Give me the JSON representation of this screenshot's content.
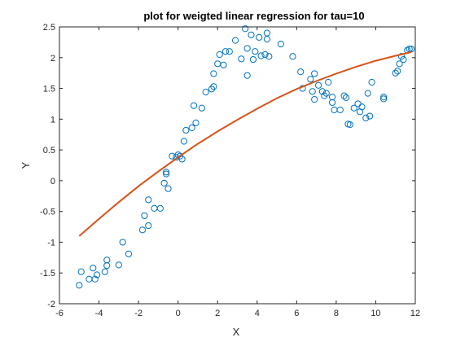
{
  "chart_data": {
    "type": "scatter",
    "title": "plot for weigted linear regression for tau=10",
    "xlabel": "X",
    "ylabel": "Y",
    "xlim": [
      -6,
      12
    ],
    "ylim": [
      -2,
      2.5
    ],
    "xticks": [
      -6,
      -4,
      -2,
      0,
      2,
      4,
      6,
      8,
      10,
      12
    ],
    "yticks": [
      -2,
      -1.5,
      -1,
      -0.5,
      0,
      0.5,
      1,
      1.5,
      2,
      2.5
    ],
    "xtick_labels": [
      "-6",
      "-4",
      "-2",
      "0",
      "2",
      "4",
      "6",
      "8",
      "10",
      "12"
    ],
    "ytick_labels": [
      "-2",
      "-1.5",
      "-1",
      "-0.5",
      "0",
      "0.5",
      "1",
      "1.5",
      "2",
      "2.5"
    ],
    "grid": false,
    "legend": false,
    "colors": {
      "points": "#0072BD",
      "line": "#D95319"
    },
    "series": [
      {
        "kind": "scatter",
        "points": [
          [
            -5.0,
            -1.7
          ],
          [
            -4.9,
            -1.48
          ],
          [
            -4.5,
            -1.6
          ],
          [
            -4.3,
            -1.42
          ],
          [
            -4.2,
            -1.6
          ],
          [
            -4.1,
            -1.53
          ],
          [
            -3.7,
            -1.48
          ],
          [
            -3.6,
            -1.38
          ],
          [
            -3.6,
            -1.29
          ],
          [
            -3.0,
            -1.37
          ],
          [
            -2.8,
            -1.0
          ],
          [
            -2.5,
            -1.19
          ],
          [
            -1.8,
            -0.8
          ],
          [
            -1.7,
            -0.57
          ],
          [
            -1.5,
            -0.73
          ],
          [
            -1.5,
            -0.31
          ],
          [
            -1.2,
            -0.45
          ],
          [
            -0.9,
            -0.45
          ],
          [
            -0.7,
            -0.04
          ],
          [
            -0.6,
            0.14
          ],
          [
            -0.6,
            0.11
          ],
          [
            -0.5,
            -0.13
          ],
          [
            -0.3,
            0.4
          ],
          [
            -0.1,
            0.38
          ],
          [
            0.0,
            0.42
          ],
          [
            0.1,
            0.4
          ],
          [
            0.2,
            0.35
          ],
          [
            0.3,
            0.64
          ],
          [
            0.4,
            0.82
          ],
          [
            0.7,
            0.86
          ],
          [
            0.8,
            1.22
          ],
          [
            0.9,
            0.94
          ],
          [
            1.2,
            1.18
          ],
          [
            1.4,
            1.44
          ],
          [
            1.7,
            1.49
          ],
          [
            1.8,
            1.53
          ],
          [
            1.8,
            1.74
          ],
          [
            2.0,
            1.9
          ],
          [
            2.1,
            2.05
          ],
          [
            2.3,
            1.88
          ],
          [
            2.4,
            2.1
          ],
          [
            2.6,
            2.1
          ],
          [
            2.9,
            2.28
          ],
          [
            3.2,
            1.98
          ],
          [
            3.4,
            2.47
          ],
          [
            3.5,
            2.15
          ],
          [
            3.5,
            1.71
          ],
          [
            3.7,
            2.37
          ],
          [
            3.8,
            1.97
          ],
          [
            3.9,
            2.1
          ],
          [
            4.1,
            2.33
          ],
          [
            4.2,
            2.03
          ],
          [
            4.4,
            2.05
          ],
          [
            4.5,
            2.4
          ],
          [
            4.5,
            2.3
          ],
          [
            4.6,
            2.02
          ],
          [
            5.2,
            2.22
          ],
          [
            5.8,
            2.02
          ],
          [
            6.2,
            1.77
          ],
          [
            6.3,
            1.5
          ],
          [
            6.7,
            1.65
          ],
          [
            6.8,
            1.45
          ],
          [
            6.9,
            1.32
          ],
          [
            6.9,
            1.74
          ],
          [
            7.1,
            1.55
          ],
          [
            7.3,
            1.45
          ],
          [
            7.4,
            1.38
          ],
          [
            7.5,
            1.42
          ],
          [
            7.6,
            1.6
          ],
          [
            7.8,
            1.36
          ],
          [
            7.8,
            1.27
          ],
          [
            7.9,
            1.15
          ],
          [
            8.2,
            1.15
          ],
          [
            8.4,
            1.38
          ],
          [
            8.5,
            1.35
          ],
          [
            8.6,
            0.92
          ],
          [
            8.7,
            0.91
          ],
          [
            8.9,
            1.18
          ],
          [
            9.1,
            1.25
          ],
          [
            9.2,
            1.12
          ],
          [
            9.3,
            1.2
          ],
          [
            9.5,
            1.02
          ],
          [
            9.6,
            1.42
          ],
          [
            9.7,
            1.05
          ],
          [
            9.8,
            1.6
          ],
          [
            10.4,
            1.33
          ],
          [
            10.4,
            1.36
          ],
          [
            11.0,
            1.75
          ],
          [
            11.1,
            1.78
          ],
          [
            11.2,
            1.9
          ],
          [
            11.3,
            2.02
          ],
          [
            11.4,
            1.97
          ],
          [
            11.6,
            2.12
          ],
          [
            11.7,
            2.14
          ],
          [
            11.8,
            2.14
          ]
        ]
      },
      {
        "kind": "line",
        "points": [
          [
            -5.0,
            -0.9
          ],
          [
            -4.0,
            -0.62
          ],
          [
            -3.0,
            -0.35
          ],
          [
            -2.0,
            -0.09
          ],
          [
            -1.0,
            0.15
          ],
          [
            0.0,
            0.38
          ],
          [
            1.0,
            0.6
          ],
          [
            2.0,
            0.8
          ],
          [
            3.0,
            0.99
          ],
          [
            4.0,
            1.17
          ],
          [
            5.0,
            1.34
          ],
          [
            6.0,
            1.49
          ],
          [
            7.0,
            1.62
          ],
          [
            8.0,
            1.74
          ],
          [
            9.0,
            1.85
          ],
          [
            10.0,
            1.95
          ],
          [
            11.0,
            2.03
          ],
          [
            11.8,
            2.09
          ]
        ]
      }
    ]
  }
}
